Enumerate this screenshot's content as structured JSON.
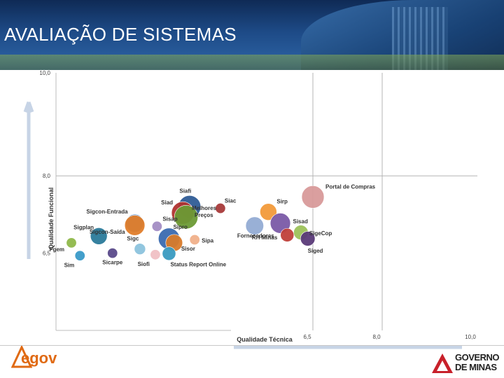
{
  "page": {
    "title": "AVALIAÇÃO DE SISTEMAS",
    "logos": {
      "egov": "egov",
      "governo_line1": "GOVERNO",
      "governo_line2": "DE MINAS"
    }
  },
  "chart_data": {
    "type": "scatter",
    "title": "",
    "xlabel": "Qualidade Técnica",
    "ylabel": "Qualidade Funcional",
    "xlim": [
      5.0,
      10.0
    ],
    "ylim": [
      5.0,
      10.0
    ],
    "x_ticks": [
      6.5,
      8.0,
      10.0
    ],
    "x_tick_labels": [
      "6,5",
      "8,0",
      "10,0"
    ],
    "y_ticks": [
      6.5,
      8.0,
      10.0
    ],
    "y_tick_labels": [
      "6,5",
      "8,0",
      "10,0"
    ],
    "reference_lines": {
      "x": [
        6.5,
        8.0
      ],
      "y": [
        8.0
      ]
    },
    "grid": false,
    "legend": "none",
    "points": [
      {
        "name": "Portal de Compras",
        "x": 6.5,
        "y": 7.59,
        "size": 1.0,
        "color": "#d89a9a"
      },
      {
        "name": "Siafi",
        "x": 5.78,
        "y": 7.4,
        "size": 1.0,
        "color": "#2f5c96"
      },
      {
        "name": "Siac",
        "x": 5.96,
        "y": 7.37,
        "size": 0.45,
        "color": "#a83a3a"
      },
      {
        "name": "Sirp",
        "x": 6.24,
        "y": 7.3,
        "size": 0.75,
        "color": "#f29a3a"
      },
      {
        "name": "Siad",
        "x": 5.74,
        "y": 7.28,
        "size": 1.0,
        "color": "#b0332f"
      },
      {
        "name": "Melhores Preços",
        "x": 5.76,
        "y": 7.2,
        "size": 1.05,
        "color": "#6b9a35"
      },
      {
        "name": "Sigcon-Entrada",
        "x": 5.46,
        "y": 7.08,
        "size": 0.8,
        "color": "#4a7dbf"
      },
      {
        "name": "Sigcon-Saída",
        "x": 5.46,
        "y": 7.04,
        "size": 0.9,
        "color": "#e07d2a"
      },
      {
        "name": "Sisap",
        "x": 5.59,
        "y": 7.02,
        "size": 0.45,
        "color": "#a38dc4"
      },
      {
        "name": "Sisad",
        "x": 6.31,
        "y": 7.08,
        "size": 0.9,
        "color": "#7a5aa6"
      },
      {
        "name": "Fornecedores",
        "x": 6.16,
        "y": 7.03,
        "size": 0.8,
        "color": "#93acd4"
      },
      {
        "name": "SigeCop",
        "x": 6.43,
        "y": 6.9,
        "size": 0.65,
        "color": "#9dc25a"
      },
      {
        "name": "RH Minas",
        "x": 6.35,
        "y": 6.85,
        "size": 0.6,
        "color": "#c0403a"
      },
      {
        "name": "Siged",
        "x": 6.47,
        "y": 6.78,
        "size": 0.65,
        "color": "#5a3a78"
      },
      {
        "name": "Sigplan",
        "x": 5.25,
        "y": 6.83,
        "size": 0.75,
        "color": "#2b7a9a"
      },
      {
        "name": "Sipro",
        "x": 5.66,
        "y": 6.78,
        "size": 0.95,
        "color": "#3a6ab0"
      },
      {
        "name": "Sipa",
        "x": 5.81,
        "y": 6.76,
        "size": 0.45,
        "color": "#f0b08a"
      },
      {
        "name": "Sisor",
        "x": 5.69,
        "y": 6.7,
        "size": 0.75,
        "color": "#d87a2a"
      },
      {
        "name": "Sigc",
        "x": 5.49,
        "y": 6.58,
        "size": 0.5,
        "color": "#8cc3dd"
      },
      {
        "name": "Fgem",
        "x": 5.09,
        "y": 6.7,
        "size": 0.45,
        "color": "#8fb84a"
      },
      {
        "name": "Sim",
        "x": 5.14,
        "y": 6.45,
        "size": 0.45,
        "color": "#3a9ac8"
      },
      {
        "name": "Sicarpe",
        "x": 5.33,
        "y": 6.5,
        "size": 0.45,
        "color": "#5a4a8a"
      },
      {
        "name": "Siofi",
        "x": 5.58,
        "y": 6.47,
        "size": 0.45,
        "color": "#f0c0c4"
      },
      {
        "name": "Status Report Online",
        "x": 5.66,
        "y": 6.49,
        "size": 0.6,
        "color": "#3a9ac0"
      }
    ]
  }
}
